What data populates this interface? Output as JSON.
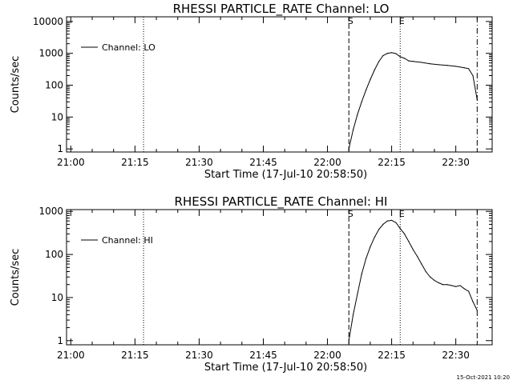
{
  "footer": {
    "timestamp": "15-Oct-2021 10:20"
  },
  "chart_data": [
    {
      "type": "line",
      "title": "RHESSI PARTICLE_RATE Channel: LO",
      "xlabel": "Start Time (17-Jul-10 20:58:50)",
      "ylabel": "Counts/sec",
      "x_ticks": [
        "21:00",
        "21:15",
        "21:30",
        "21:45",
        "22:00",
        "22:15",
        "22:30"
      ],
      "y_ticks": [
        "1",
        "10",
        "100",
        "1000",
        "10000"
      ],
      "y_scale": "log",
      "xlim": [
        "21:00",
        "22:38"
      ],
      "ylim": [
        0.8,
        14000
      ],
      "legend": {
        "placement": "top-left",
        "entries": [
          "Channel: LO"
        ]
      },
      "markers": [
        {
          "time": "21:17",
          "style": "dotted",
          "label": ""
        },
        {
          "time": "22:05",
          "style": "dashed",
          "label": "S"
        },
        {
          "time": "22:17",
          "style": "dotted",
          "label": "E"
        },
        {
          "time": "22:35",
          "style": "dash-dot",
          "label": ""
        }
      ],
      "series": [
        {
          "name": "Channel: LO",
          "points": [
            [
              "22:05",
              1
            ],
            [
              "22:06",
              4
            ],
            [
              "22:07",
              12
            ],
            [
              "22:08",
              30
            ],
            [
              "22:09",
              70
            ],
            [
              "22:10",
              150
            ],
            [
              "22:11",
              300
            ],
            [
              "22:12",
              550
            ],
            [
              "22:13",
              850
            ],
            [
              "22:14",
              1000
            ],
            [
              "22:15",
              1050
            ],
            [
              "22:16",
              980
            ],
            [
              "22:17",
              780
            ],
            [
              "22:18",
              700
            ],
            [
              "22:19",
              580
            ],
            [
              "22:20",
              560
            ],
            [
              "22:22",
              520
            ],
            [
              "22:24",
              470
            ],
            [
              "22:26",
              440
            ],
            [
              "22:28",
              420
            ],
            [
              "22:30",
              390
            ],
            [
              "22:32",
              350
            ],
            [
              "22:33",
              330
            ],
            [
              "22:34",
              200
            ],
            [
              "22:35",
              35
            ]
          ]
        }
      ]
    },
    {
      "type": "line",
      "title": "RHESSI PARTICLE_RATE Channel: HI",
      "xlabel": "Start Time (17-Jul-10 20:58:50)",
      "ylabel": "Counts/sec",
      "x_ticks": [
        "21:00",
        "21:15",
        "21:30",
        "21:45",
        "22:00",
        "22:15",
        "22:30"
      ],
      "y_ticks": [
        "1",
        "10",
        "100",
        "1000"
      ],
      "y_scale": "log",
      "xlim": [
        "21:00",
        "22:38"
      ],
      "ylim": [
        0.8,
        1100
      ],
      "legend": {
        "placement": "top-left",
        "entries": [
          "Channel: HI"
        ]
      },
      "markers": [
        {
          "time": "21:17",
          "style": "dotted",
          "label": ""
        },
        {
          "time": "22:05",
          "style": "dashed",
          "label": "S"
        },
        {
          "time": "22:17",
          "style": "dotted",
          "label": "E"
        },
        {
          "time": "22:35",
          "style": "dash-dot",
          "label": ""
        }
      ],
      "series": [
        {
          "name": "Channel: HI",
          "points": [
            [
              "22:05",
              1
            ],
            [
              "22:06",
              4
            ],
            [
              "22:07",
              12
            ],
            [
              "22:08",
              35
            ],
            [
              "22:09",
              80
            ],
            [
              "22:10",
              150
            ],
            [
              "22:11",
              250
            ],
            [
              "22:12",
              380
            ],
            [
              "22:13",
              500
            ],
            [
              "22:14",
              600
            ],
            [
              "22:15",
              620
            ],
            [
              "22:16",
              550
            ],
            [
              "22:17",
              400
            ],
            [
              "22:18",
              300
            ],
            [
              "22:19",
              200
            ],
            [
              "22:20",
              130
            ],
            [
              "22:21",
              90
            ],
            [
              "22:22",
              60
            ],
            [
              "22:23",
              40
            ],
            [
              "22:24",
              30
            ],
            [
              "22:25",
              25
            ],
            [
              "22:26",
              22
            ],
            [
              "22:27",
              20
            ],
            [
              "22:28",
              20
            ],
            [
              "22:29",
              19
            ],
            [
              "22:30",
              18
            ],
            [
              "22:31",
              19
            ],
            [
              "22:32",
              16
            ],
            [
              "22:33",
              14
            ],
            [
              "22:34",
              8
            ],
            [
              "22:35",
              5
            ]
          ]
        }
      ]
    }
  ]
}
